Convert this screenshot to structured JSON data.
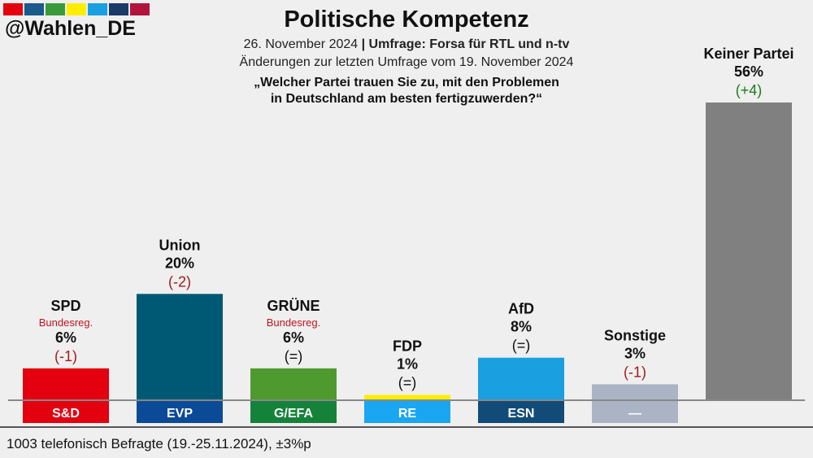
{
  "branding": {
    "handle": "@Wahlen_DE",
    "stripe_colors": [
      "#e3000f",
      "#1a5a8c",
      "#3a9a3a",
      "#ffed00",
      "#1aa0e0",
      "#1a3a6a",
      "#b0143c"
    ]
  },
  "header": {
    "title": "Politische Kompetenz",
    "subtitle_date": "26. November 2024",
    "subtitle_separator": "|",
    "subtitle_source": "Umfrage: Forsa für RTL und n-tv",
    "subtitle_changes": "Änderungen zur letzten Umfrage vom 19. November 2024",
    "question_line1": "„Welcher Partei trauen Sie zu, mit den Problemen",
    "question_line2": "in Deutschland am besten fertigzuwerden?“"
  },
  "footer": {
    "note": "1003 telefonisch Befragte (19.-25.11.2024), ±3%p"
  },
  "chart_data": {
    "type": "bar",
    "title": "Politische Kompetenz",
    "categories": [
      "SPD",
      "Union",
      "GRÜNE",
      "FDP",
      "AfD",
      "Sonstige",
      "Keiner Partei"
    ],
    "values": [
      6,
      20,
      6,
      1,
      8,
      3,
      56
    ],
    "value_labels": [
      "6%",
      "20%",
      "6%",
      "1%",
      "8%",
      "3%",
      "56%"
    ],
    "changes": [
      "(-1)",
      "(-2)",
      "(=)",
      "(=)",
      "(=)",
      "(-1)",
      "(+4)"
    ],
    "change_direction": [
      "down",
      "down",
      "same",
      "same",
      "same",
      "down",
      "up"
    ],
    "notes": [
      "Bundesreg.",
      "",
      "Bundesreg.",
      "",
      "",
      "",
      ""
    ],
    "group_labels": [
      "S&D",
      "EVP",
      "G/EFA",
      "RE",
      "ESN",
      "—",
      ""
    ],
    "colors": [
      "#e3000f",
      "#005974",
      "#4e9a2e",
      "#ffed00",
      "#1aa0e0",
      "#aab4c4",
      "#808080"
    ],
    "group_colors": [
      "#e3000f",
      "#0b4a97",
      "#15823a",
      "#1aa6f0",
      "#134b78",
      "#aab4c4",
      ""
    ],
    "change_colors": {
      "down": "#9e1a1a",
      "same": "#111111",
      "up": "#1e7a1e"
    },
    "ylim": [
      0,
      56
    ]
  }
}
